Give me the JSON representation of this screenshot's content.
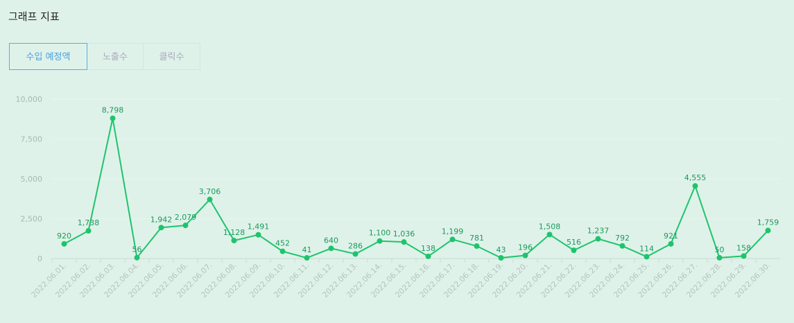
{
  "header": {
    "title": "그래프 지표"
  },
  "tabs": [
    "수입 예정액",
    "노출수",
    "클릭수"
  ],
  "chart_data": {
    "type": "line",
    "categories": [
      "2022.06.01.",
      "2022.06.02.",
      "2022.06.03.",
      "2022.06.04.",
      "2022.06.05.",
      "2022.06.06.",
      "2022.06.07.",
      "2022.06.08.",
      "2022.06.09.",
      "2022.06.10.",
      "2022.06.11.",
      "2022.06.12.",
      "2022.06.13.",
      "2022.06.14.",
      "2022.06.15.",
      "2022.06.16.",
      "2022.06.17.",
      "2022.06.18.",
      "2022.06.19.",
      "2022.06.20.",
      "2022.06.21.",
      "2022.06.22.",
      "2022.06.23.",
      "2022.06.24.",
      "2022.06.25.",
      "2022.06.26.",
      "2022.06.27.",
      "2022.06.28.",
      "2022.06.29.",
      "2022.06.30."
    ],
    "values": [
      920,
      1738,
      8798,
      56,
      1942,
      2079,
      3706,
      1128,
      1491,
      452,
      41,
      640,
      286,
      1100,
      1036,
      138,
      1199,
      781,
      43,
      196,
      1508,
      516,
      1237,
      792,
      114,
      921,
      4555,
      50,
      158,
      1759
    ],
    "value_labels": [
      "920",
      "1,738",
      "8,798",
      "56",
      "1,942",
      "2,079",
      "3,706",
      "1,128",
      "1,491",
      "452",
      "41",
      "640",
      "286",
      "1,100",
      "1,036",
      "138",
      "1,199",
      "781",
      "43",
      "196",
      "1,508",
      "516",
      "1,237",
      "792",
      "114",
      "921",
      "4,555",
      "50",
      "158",
      "1,759"
    ],
    "color": "#1ec46c",
    "ylim": [
      0,
      10000
    ],
    "yticks": [
      0,
      {
        "value": 2500,
        "label": "2,500"
      },
      {
        "value": 5000,
        "label": "5,000"
      },
      {
        "value": 7500,
        "label": "7,500"
      },
      {
        "value": 10000,
        "label": "10,000"
      }
    ],
    "grid": true
  }
}
